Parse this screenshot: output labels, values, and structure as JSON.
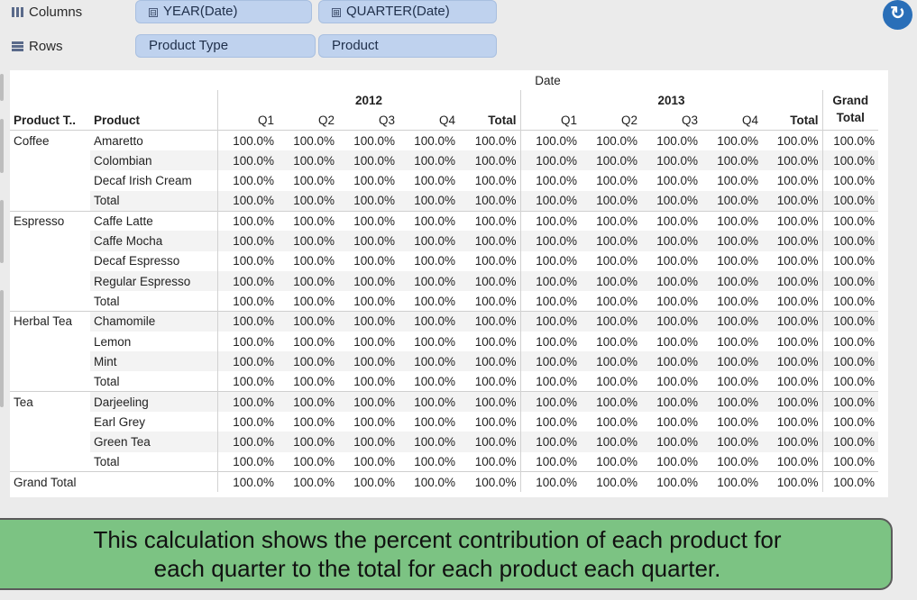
{
  "shelves": {
    "columns": {
      "label": "Columns",
      "pills": [
        "YEAR(Date)",
        "QUARTER(Date)"
      ],
      "pill_marks": [
        "⊟",
        "⊞"
      ]
    },
    "rows": {
      "label": "Rows",
      "pills": [
        "Product Type",
        "Product"
      ]
    }
  },
  "crosstab": {
    "top_header": "Date",
    "years": [
      "2012",
      "2013"
    ],
    "grand_total_header": [
      "Grand",
      "Total"
    ],
    "row_headers": [
      "Product T..",
      "Product"
    ],
    "quarter_headers": [
      "Q1",
      "Q2",
      "Q3",
      "Q4",
      "Total"
    ],
    "cell_value": "100.0%",
    "groups": [
      {
        "type": "Coffee",
        "products": [
          "Amaretto",
          "Colombian",
          "Decaf Irish Cream",
          "Total"
        ]
      },
      {
        "type": "Espresso",
        "products": [
          "Caffe Latte",
          "Caffe Mocha",
          "Decaf Espresso",
          "Regular Espresso",
          "Total"
        ]
      },
      {
        "type": "Herbal Tea",
        "products": [
          "Chamomile",
          "Lemon",
          "Mint",
          "Total"
        ]
      },
      {
        "type": "Tea",
        "products": [
          "Darjeeling",
          "Earl Grey",
          "Green Tea",
          "Total"
        ]
      }
    ],
    "grand_total_row": "Grand Total"
  },
  "banner": {
    "line1": "This calculation shows the percent contribution of each product for",
    "line2": "each quarter to the total for each product each quarter."
  },
  "colors": {
    "pill": "#bfd2ee",
    "banner": "#7cc383",
    "undo": "#2a6fb8"
  },
  "icons": {
    "columns": "columns-icon",
    "rows": "rows-icon",
    "undo": "undo-icon"
  }
}
